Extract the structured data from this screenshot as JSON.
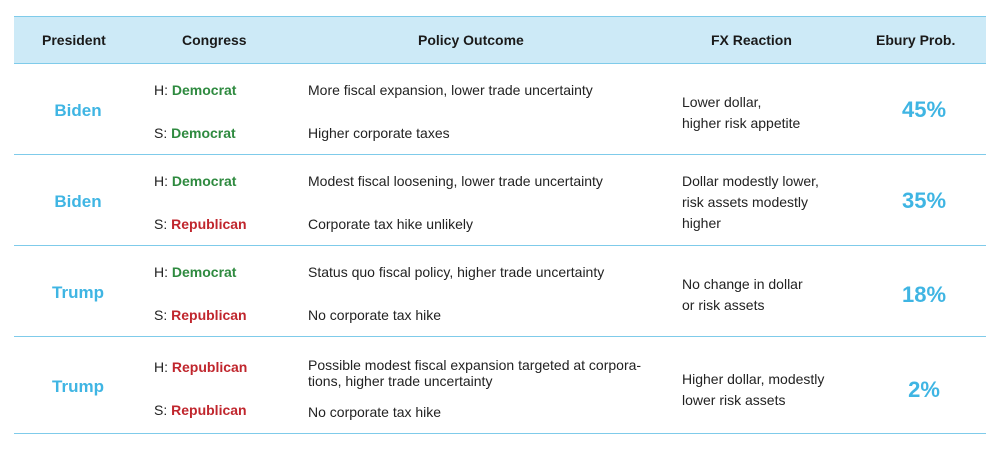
{
  "header": {
    "president": "President",
    "congress": "Congress",
    "policy": "Policy Outcome",
    "fx": "FX Reaction",
    "prob": "Ebury Prob."
  },
  "rows": [
    {
      "president": "Biden",
      "house_prefix": "H:",
      "house_party": "Democrat",
      "senate_prefix": "S:",
      "senate_party": "Democrat",
      "policy_1": "More fiscal expansion, lower trade uncertainty",
      "policy_2": "Higher corporate taxes",
      "fx": "Lower dollar,\nhigher risk appetite",
      "prob": "45%"
    },
    {
      "president": "Biden",
      "house_prefix": "H:",
      "house_party": "Democrat",
      "senate_prefix": "S:",
      "senate_party": "Republican",
      "policy_1": "Modest fiscal loosening, lower trade uncertainty",
      "policy_2": "Corporate tax hike unlikely",
      "fx": "Dollar modestly lower,\nrisk assets modestly\nhigher",
      "prob": "35%"
    },
    {
      "president": "Trump",
      "house_prefix": "H:",
      "house_party": "Democrat",
      "senate_prefix": "S:",
      "senate_party": "Republican",
      "policy_1": "Status quo fiscal policy, higher trade uncertainty",
      "policy_2": "No corporate tax hike",
      "fx": "No change in dollar\nor risk assets",
      "prob": "18%"
    },
    {
      "president": "Trump",
      "house_prefix": "H:",
      "house_party": "Republican",
      "senate_prefix": "S:",
      "senate_party": "Republican",
      "policy_1": "Possible modest fiscal expansion targeted at corpora-\ntions, higher trade uncertainty",
      "policy_2": "No corporate tax hike",
      "fx": "Higher dollar, modestly\nlower risk assets",
      "prob": "2%"
    }
  ],
  "colors": {
    "accent": "#3fb5e3",
    "header_bg": "#cdeaf7",
    "democrat": "#2e8a3f",
    "republican": "#c0262d",
    "rule": "#7fcbea"
  }
}
